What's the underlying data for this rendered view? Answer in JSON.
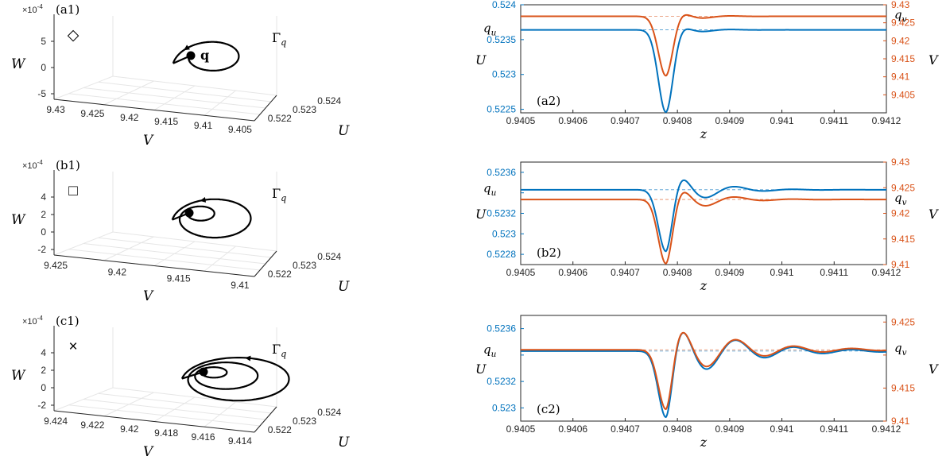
{
  "chart_data": [
    {
      "id": "a1",
      "type": "line",
      "panel_label": "(a1)",
      "marker_symbol": "◇",
      "exponent_label": "×10",
      "exponent_power": "-4",
      "w_ticks": [
        "5",
        "0",
        "-5"
      ],
      "v_ticks": [
        "9.43",
        "9.425",
        "9.42",
        "9.415",
        "9.41",
        "9.405"
      ],
      "u_ticks": [
        "0.522",
        "0.523",
        "0.524"
      ],
      "xlabel_v": "V",
      "ylabel_w": "W",
      "label_u": "U",
      "orbit_label": "Γ",
      "orbit_label_sub": "q",
      "point_label": "q",
      "orbit_turns": 1
    },
    {
      "id": "b1",
      "type": "line",
      "panel_label": "(b1)",
      "marker_symbol": "□",
      "exponent_label": "×10",
      "exponent_power": "-4",
      "w_ticks": [
        "4",
        "2",
        "0",
        "-2"
      ],
      "v_ticks": [
        "9.425",
        "9.42",
        "9.415",
        "9.41"
      ],
      "u_ticks": [
        "0.522",
        "0.523",
        "0.524"
      ],
      "xlabel_v": "V",
      "ylabel_w": "W",
      "label_u": "U",
      "orbit_label": "Γ",
      "orbit_label_sub": "q",
      "orbit_turns": 2
    },
    {
      "id": "c1",
      "type": "line",
      "panel_label": "(c1)",
      "marker_symbol": "×",
      "exponent_label": "×10",
      "exponent_power": "-4",
      "w_ticks": [
        "4",
        "2",
        "0",
        "-2"
      ],
      "v_ticks": [
        "9.424",
        "9.422",
        "9.42",
        "9.418",
        "9.416",
        "9.414"
      ],
      "u_ticks": [
        "0.522",
        "0.523",
        "0.524"
      ],
      "xlabel_v": "V",
      "ylabel_w": "W",
      "label_u": "U",
      "orbit_label": "Γ",
      "orbit_label_sub": "q",
      "orbit_turns": 3
    },
    {
      "id": "a2",
      "type": "line",
      "panel_label": "(a2)",
      "xlabel": "z",
      "ylabel_left": "U",
      "ylabel_right": "V",
      "xlim": [
        0.9405,
        0.9412
      ],
      "x_ticks": [
        "0.9405",
        "0.9406",
        "0.9407",
        "0.9408",
        "0.9409",
        "0.941",
        "0.9411",
        "0.9412"
      ],
      "ylim_left": [
        0.52245,
        0.524
      ],
      "left_ticks": [
        0.5225,
        0.523,
        0.5235,
        0.524
      ],
      "left_tick_labels": [
        "0.5225",
        "0.523",
        "0.5235",
        "0.524"
      ],
      "ylim_right": [
        9.4,
        9.43
      ],
      "right_ticks": [
        9.405,
        9.41,
        9.415,
        9.42,
        9.425,
        9.43
      ],
      "right_tick_labels": [
        "9.405",
        "9.41",
        "9.415",
        "9.42",
        "9.425",
        "9.43"
      ],
      "q_u": 0.52364,
      "q_v": 9.4268,
      "q_u_label": "q",
      "q_u_sub": "u",
      "q_v_label": "q",
      "q_v_sub": "v",
      "series": [
        {
          "name": "U",
          "color": "#0072BD",
          "axis": "left",
          "base": 0.52364,
          "pulse": {
            "center": 0.940778,
            "width": 1.45e-05,
            "depth": -0.00118
          },
          "wave": {
            "amp": 0.00018,
            "freq": 31000,
            "decay": 3.6e-05
          }
        },
        {
          "name": "V",
          "color": "#D95319",
          "axis": "right",
          "base": 9.4268,
          "pulse": {
            "center": 0.940778,
            "width": 1.45e-05,
            "depth": -0.0165
          },
          "wave": {
            "amp": 0.0038,
            "freq": 31000,
            "decay": 3.6e-05
          }
        }
      ],
      "colors": {
        "u": "#0072BD",
        "v": "#D95319"
      }
    },
    {
      "id": "b2",
      "type": "line",
      "panel_label": "(b2)",
      "xlabel": "z",
      "ylabel_left": "U",
      "ylabel_right": "V",
      "xlim": [
        0.9405,
        0.9412
      ],
      "x_ticks": [
        "0.9405",
        "0.9406",
        "0.9407",
        "0.9408",
        "0.9409",
        "0.941",
        "0.9411",
        "0.9412"
      ],
      "ylim_left": [
        0.5227,
        0.5237
      ],
      "left_ticks": [
        0.5228,
        0.523,
        0.5232,
        0.5234,
        0.5236
      ],
      "left_tick_labels": [
        "0.5228",
        "0.523",
        "0.5232",
        "",
        "0.5236"
      ],
      "ylim_right": [
        9.41,
        9.43
      ],
      "right_ticks": [
        9.41,
        9.415,
        9.42,
        9.425,
        9.43
      ],
      "right_tick_labels": [
        "9.41",
        "9.415",
        "9.42",
        "9.425",
        "9.43"
      ],
      "q_u": 0.52343,
      "q_v": 9.4227,
      "q_u_label": "q",
      "q_u_sub": "u",
      "q_v_label": "q",
      "q_v_sub": "v",
      "series": [
        {
          "name": "U",
          "color": "#0072BD",
          "axis": "left",
          "base": 0.52343,
          "pulse": {
            "center": 0.940778,
            "width": 1.45e-05,
            "depth": -0.0006
          },
          "wave": {
            "amp": 0.00028,
            "freq": 30000,
            "decay": 6e-05
          }
        },
        {
          "name": "V",
          "color": "#D95319",
          "axis": "right",
          "base": 9.4227,
          "pulse": {
            "center": 0.940778,
            "width": 1.45e-05,
            "depth": -0.0125
          },
          "wave": {
            "amp": 0.0045,
            "freq": 30000,
            "decay": 6e-05
          }
        }
      ],
      "colors": {
        "u": "#0072BD",
        "v": "#D95319"
      }
    },
    {
      "id": "c2",
      "type": "line",
      "panel_label": "(c2)",
      "xlabel": "z",
      "ylabel_left": "U",
      "ylabel_right": "V",
      "xlim": [
        0.9405,
        0.9412
      ],
      "x_ticks": [
        "0.9405",
        "0.9406",
        "0.9407",
        "0.9408",
        "0.9409",
        "0.941",
        "0.9411",
        "0.9412"
      ],
      "ylim_left": [
        0.5229,
        0.5237
      ],
      "left_ticks": [
        0.523,
        0.5232,
        0.5234,
        0.5236
      ],
      "left_tick_labels": [
        "0.523",
        "0.5232",
        "",
        "0.5236"
      ],
      "ylim_right": [
        9.41,
        9.426
      ],
      "right_ticks": [
        9.41,
        9.415,
        9.42,
        9.425
      ],
      "right_tick_labels": [
        "9.41",
        "9.415",
        "",
        "9.425"
      ],
      "q_u": 0.52343,
      "q_v": 9.4208,
      "q_u_label": "q",
      "q_u_sub": "u",
      "q_v_label": "q",
      "q_v_sub": "v",
      "series": [
        {
          "name": "U",
          "color": "#0072BD",
          "axis": "left",
          "base": 0.52343,
          "pulse": {
            "center": 0.940778,
            "width": 1.45e-05,
            "depth": -0.0005
          },
          "wave": {
            "amp": 0.00028,
            "freq": 30000,
            "decay": 0.00011
          }
        },
        {
          "name": "V",
          "color": "#D95319",
          "axis": "right",
          "base": 9.4208,
          "pulse": {
            "center": 0.940778,
            "width": 1.45e-05,
            "depth": -0.009
          },
          "wave": {
            "amp": 0.0052,
            "freq": 30000,
            "decay": 0.00011
          }
        }
      ],
      "colors": {
        "u": "#0072BD",
        "v": "#D95319"
      }
    }
  ]
}
